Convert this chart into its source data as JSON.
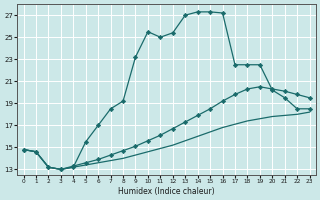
{
  "xlabel": "Humidex (Indice chaleur)",
  "bg_color": "#cce8e8",
  "grid_color": "#ffffff",
  "line_color": "#1a6b6b",
  "xlim": [
    -0.5,
    23.5
  ],
  "ylim": [
    12.5,
    28.0
  ],
  "yticks": [
    13,
    15,
    17,
    19,
    21,
    23,
    25,
    27
  ],
  "xticks": [
    0,
    1,
    2,
    3,
    4,
    5,
    6,
    7,
    8,
    9,
    10,
    11,
    12,
    13,
    14,
    15,
    16,
    17,
    18,
    19,
    20,
    21,
    22,
    23
  ],
  "line1_x": [
    0,
    1,
    2,
    3,
    4,
    5,
    6,
    7,
    8,
    9,
    10,
    11,
    12,
    13,
    14,
    15,
    16,
    17,
    18,
    19,
    20,
    21,
    22,
    23
  ],
  "line1_y": [
    14.8,
    14.6,
    13.2,
    13.0,
    13.2,
    15.5,
    17.0,
    18.5,
    19.2,
    23.2,
    25.5,
    25.0,
    25.4,
    27.0,
    27.3,
    27.3,
    27.2,
    22.5,
    22.5,
    22.5,
    20.2,
    19.5,
    18.5,
    18.5
  ],
  "line2_x": [
    0,
    1,
    2,
    3,
    4,
    5,
    6,
    7,
    8,
    9,
    10,
    11,
    12,
    13,
    14,
    15,
    16,
    17,
    18,
    19,
    20,
    21,
    22,
    23
  ],
  "line2_y": [
    14.8,
    14.6,
    13.2,
    13.0,
    13.3,
    13.6,
    13.9,
    14.3,
    14.7,
    15.1,
    15.6,
    16.1,
    16.7,
    17.3,
    17.9,
    18.5,
    19.2,
    19.8,
    20.3,
    20.5,
    20.3,
    20.1,
    19.8,
    19.5
  ],
  "line3_x": [
    0,
    1,
    2,
    3,
    4,
    5,
    6,
    7,
    8,
    9,
    10,
    11,
    12,
    13,
    14,
    15,
    16,
    17,
    18,
    19,
    20,
    21,
    22,
    23
  ],
  "line3_y": [
    14.8,
    14.6,
    13.2,
    13.0,
    13.2,
    13.4,
    13.6,
    13.8,
    14.0,
    14.3,
    14.6,
    14.9,
    15.2,
    15.6,
    16.0,
    16.4,
    16.8,
    17.1,
    17.4,
    17.6,
    17.8,
    17.9,
    18.0,
    18.2
  ]
}
